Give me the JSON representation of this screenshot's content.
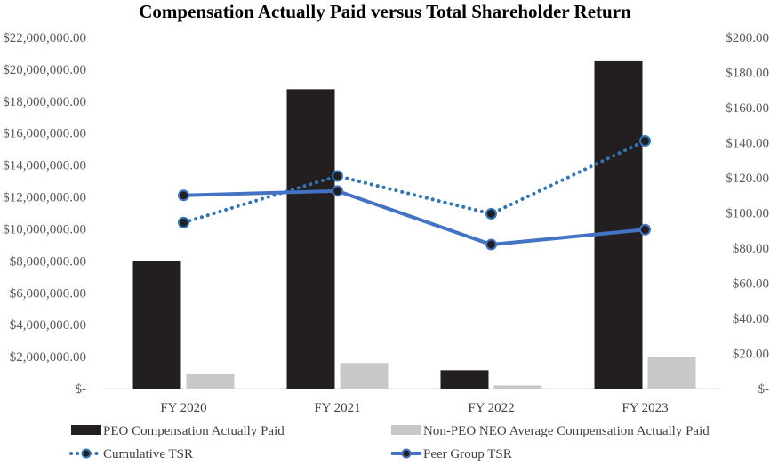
{
  "chart_data": {
    "type": "bar",
    "title": "Compensation Actually Paid versus Total Shareholder Return",
    "categories": [
      "FY 2020",
      "FY 2021",
      "FY 2022",
      "FY 2023"
    ],
    "y_left": {
      "ylim": [
        0,
        22000000
      ],
      "ticks": [
        0,
        2000000,
        4000000,
        6000000,
        8000000,
        10000000,
        12000000,
        14000000,
        16000000,
        18000000,
        20000000,
        22000000
      ],
      "tick_labels": [
        "$-",
        "$2,000,000.00",
        "$4,000,000.00",
        "$6,000,000.00",
        "$8,000,000.00",
        "$10,000,000.00",
        "$12,000,000.00",
        "$14,000,000.00",
        "$16,000,000.00",
        "$18,000,000.00",
        "$20,000,000.00",
        "$22,000,000.00"
      ]
    },
    "y_right": {
      "ylim": [
        0,
        200
      ],
      "ticks": [
        0,
        20,
        40,
        60,
        80,
        100,
        120,
        140,
        160,
        180,
        200
      ],
      "tick_labels": [
        "$-",
        "$20.00",
        "$40.00",
        "$60.00",
        "$80.00",
        "$100.00",
        "$120.00",
        "$140.00",
        "$160.00",
        "$180.00",
        "$200.00"
      ]
    },
    "series": [
      {
        "name": "PEO Compensation Actually Paid",
        "kind": "bar",
        "axis": "left",
        "color": "#231f20",
        "values": [
          8000000,
          18750000,
          1150000,
          20500000
        ]
      },
      {
        "name": "Non-PEO NEO Average Compensation Actually Paid",
        "kind": "bar",
        "axis": "left",
        "color": "#c8c8c8",
        "values": [
          900000,
          1600000,
          200000,
          1950000
        ]
      },
      {
        "name": "Cumulative TSR",
        "kind": "line",
        "style": "dotted",
        "axis": "right",
        "color": "#2e75b6",
        "values": [
          94.5,
          121,
          99.5,
          141
        ]
      },
      {
        "name": "Peer Group TSR",
        "kind": "line",
        "style": "solid",
        "axis": "right",
        "color": "#4472c4",
        "values": [
          110,
          112.5,
          82,
          90.5
        ]
      }
    ],
    "legend": {
      "placement": "bottom",
      "items": [
        "PEO Compensation Actually Paid",
        "Non-PEO NEO Average Compensation Actually Paid",
        "Cumulative TSR",
        "Peer Group TSR"
      ]
    }
  }
}
